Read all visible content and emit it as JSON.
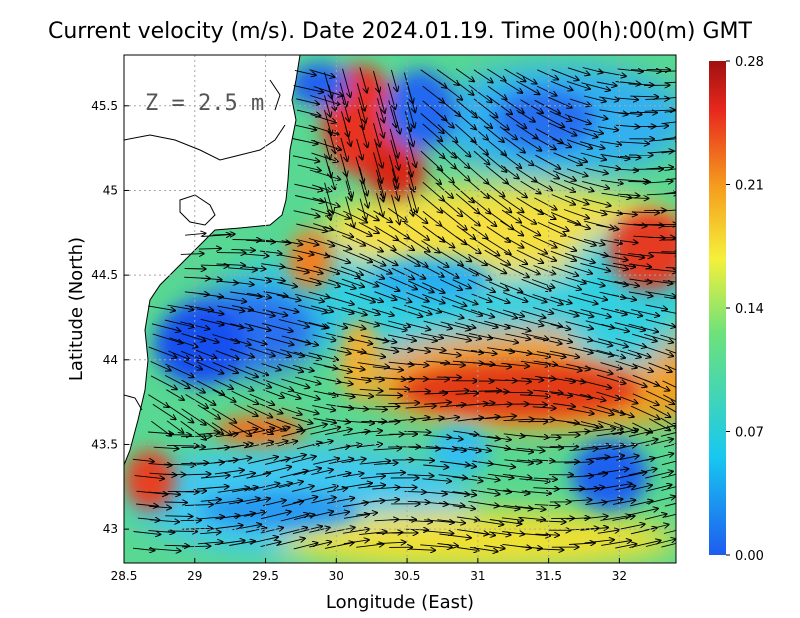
{
  "title": "Current velocity (m/s). Date 2024.01.19. Time 00(h):00(m) GMT",
  "depth_label": "Z = 2.5 m",
  "chart_data": {
    "type": "heatmap",
    "title": "Current velocity (m/s). Date 2024.01.19. Time 00(h):00(m) GMT",
    "xlabel": "Longitude (East)",
    "ylabel": "Latitude (North)",
    "xlim": [
      28.5,
      32.4
    ],
    "ylim": [
      42.8,
      45.8
    ],
    "x_ticks": [
      "28.5",
      "29",
      "29.5",
      "30",
      "30.5",
      "31",
      "31.5",
      "32"
    ],
    "y_ticks": [
      "43",
      "43.5",
      "44",
      "44.5",
      "45",
      "45.5"
    ],
    "grid": true,
    "colorbar": {
      "min": 0.0,
      "max": 0.28,
      "ticks": [
        "0.00",
        "0.07",
        "0.14",
        "0.21",
        "0.28"
      ],
      "colors": [
        "#1e5cf0",
        "#18c8f0",
        "#6ee27a",
        "#f5f03a",
        "#f59a1e",
        "#e8281e",
        "#a01010"
      ]
    },
    "speed_maxima": [
      {
        "lon": 30.2,
        "lat": 45.3,
        "speed": 0.24
      },
      {
        "lon": 30.3,
        "lat": 44.95,
        "speed": 0.22
      },
      {
        "lon": 31.3,
        "lat": 43.8,
        "speed": 0.25
      },
      {
        "lon": 32.3,
        "lat": 44.7,
        "speed": 0.24
      },
      {
        "lon": 29.9,
        "lat": 44.6,
        "speed": 0.21
      },
      {
        "lon": 28.6,
        "lat": 43.2,
        "speed": 0.22
      },
      {
        "lon": 29.6,
        "lat": 43.55,
        "speed": 0.21
      },
      {
        "lon": 30.9,
        "lat": 42.85,
        "speed": 0.19
      }
    ],
    "speed_minima": [
      {
        "lon": 29.1,
        "lat": 44.1,
        "speed": 0.01
      },
      {
        "lon": 30.8,
        "lat": 45.4,
        "speed": 0.02
      },
      {
        "lon": 31.5,
        "lat": 45.45,
        "speed": 0.05
      },
      {
        "lon": 31.85,
        "lat": 43.25,
        "speed": 0.02
      },
      {
        "lon": 29.7,
        "lat": 45.55,
        "speed": 0.02
      }
    ]
  }
}
